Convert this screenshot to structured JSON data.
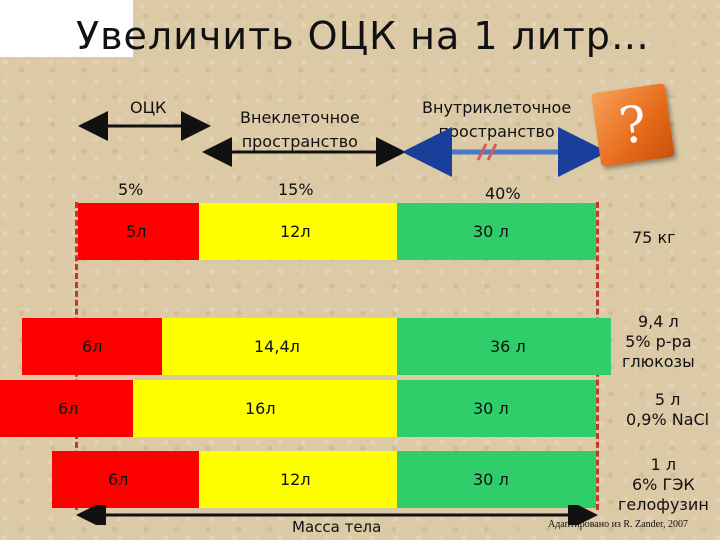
{
  "title": "Увеличить ОЦК на 1 литр…",
  "headers": {
    "otsk": "ОЦК",
    "extracellular_line1": "Внеклеточное",
    "extracellular_line2": "пространство",
    "intracellular_line1": "Внутриклеточное",
    "intracellular_line2": "пространство"
  },
  "percentages": {
    "otsk": "5%",
    "extracellular": "15%",
    "intracellular": "40%"
  },
  "question_mark": "?",
  "rows": [
    {
      "red": "5л",
      "yellow": "12л",
      "green": "30 л",
      "side": [
        "75 кг"
      ]
    },
    {
      "red": "6л",
      "yellow": "14,4л",
      "green": "36 л",
      "side": [
        "9,4 л",
        "5% р-ра",
        "глюкозы"
      ]
    },
    {
      "red": "6л",
      "yellow": "16л",
      "green": "30 л",
      "side": [
        "5 л",
        "0,9% NaCl"
      ]
    },
    {
      "red": "6л",
      "yellow": "12л",
      "green": "30 л",
      "side": [
        "1 л",
        "6% ГЭК",
        "гелофузин"
      ]
    }
  ],
  "body_mass_label": "Масса тела",
  "credit": "Адаптировано из R. Zander, 2007",
  "colors": {
    "red": "#ff0000",
    "yellow": "#ffff00",
    "green": "#2fce6b",
    "dash": "#c0392b",
    "accent": "#e7691a"
  }
}
